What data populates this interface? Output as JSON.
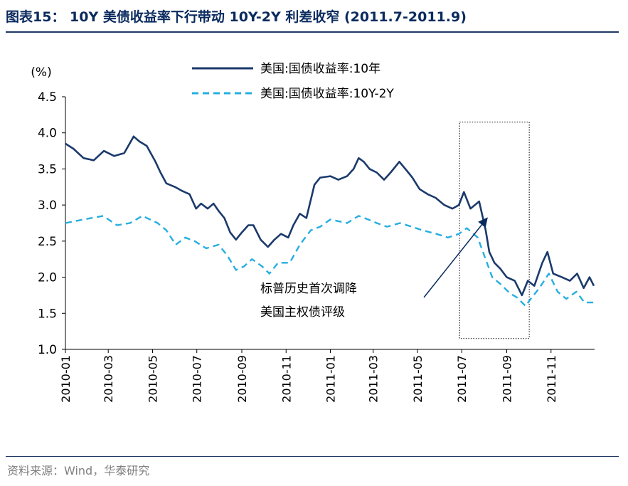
{
  "header": {
    "title": "图表15： 10Y 美债收益率下行带动 10Y-2Y 利差收窄 (2011.7-2011.9)"
  },
  "source": {
    "text": "资料来源：Wind，华泰研究"
  },
  "colors": {
    "series_10y": "#1b3a6b",
    "series_spread": "#27aee0",
    "axis": "#000000",
    "title": "#0a2a5e"
  },
  "chart_data": {
    "type": "line",
    "ylabel": "(%)",
    "ylim": [
      1.0,
      4.5
    ],
    "yticks": [
      "1.0",
      "1.5",
      "2.0",
      "2.5",
      "3.0",
      "3.5",
      "4.0",
      "4.5"
    ],
    "xlim": [
      "2010-01-01",
      "2011-12-31"
    ],
    "xtick_dates": [
      "2010-01-01",
      "2010-03-01",
      "2010-05-01",
      "2010-07-01",
      "2010-09-01",
      "2010-11-01",
      "2011-01-01",
      "2011-03-01",
      "2011-05-01",
      "2011-07-01",
      "2011-09-01",
      "2011-11-01"
    ],
    "xtick_labels": [
      "2010-01",
      "2010-03",
      "2010-05",
      "2010-07",
      "2010-09",
      "2010-11",
      "2011-01",
      "2011-03",
      "2011-05",
      "2011-07",
      "2011-09",
      "2011-11"
    ],
    "grid": false,
    "legend_position": "top",
    "series": [
      {
        "name": "美国:国债收益率:10年",
        "style": "solid",
        "points": [
          [
            "2010-01-01",
            3.85
          ],
          [
            "2010-01-12",
            3.78
          ],
          [
            "2010-01-26",
            3.65
          ],
          [
            "2010-02-09",
            3.62
          ],
          [
            "2010-02-23",
            3.75
          ],
          [
            "2010-03-09",
            3.68
          ],
          [
            "2010-03-23",
            3.72
          ],
          [
            "2010-04-05",
            3.95
          ],
          [
            "2010-04-13",
            3.88
          ],
          [
            "2010-04-23",
            3.82
          ],
          [
            "2010-05-05",
            3.6
          ],
          [
            "2010-05-12",
            3.45
          ],
          [
            "2010-05-20",
            3.3
          ],
          [
            "2010-06-01",
            3.25
          ],
          [
            "2010-06-10",
            3.2
          ],
          [
            "2010-06-21",
            3.15
          ],
          [
            "2010-06-30",
            2.95
          ],
          [
            "2010-07-07",
            3.02
          ],
          [
            "2010-07-16",
            2.95
          ],
          [
            "2010-07-24",
            3.02
          ],
          [
            "2010-07-31",
            2.92
          ],
          [
            "2010-08-08",
            2.82
          ],
          [
            "2010-08-16",
            2.62
          ],
          [
            "2010-08-24",
            2.52
          ],
          [
            "2010-09-01",
            2.62
          ],
          [
            "2010-09-10",
            2.72
          ],
          [
            "2010-09-17",
            2.72
          ],
          [
            "2010-09-27",
            2.52
          ],
          [
            "2010-10-07",
            2.42
          ],
          [
            "2010-10-16",
            2.52
          ],
          [
            "2010-10-25",
            2.6
          ],
          [
            "2010-11-04",
            2.55
          ],
          [
            "2010-11-11",
            2.72
          ],
          [
            "2010-11-20",
            2.88
          ],
          [
            "2010-11-29",
            2.82
          ],
          [
            "2010-12-10",
            3.28
          ],
          [
            "2010-12-18",
            3.38
          ],
          [
            "2011-01-01",
            3.4
          ],
          [
            "2011-01-12",
            3.35
          ],
          [
            "2011-01-24",
            3.4
          ],
          [
            "2011-02-02",
            3.5
          ],
          [
            "2011-02-09",
            3.65
          ],
          [
            "2011-02-16",
            3.6
          ],
          [
            "2011-02-24",
            3.5
          ],
          [
            "2011-03-06",
            3.45
          ],
          [
            "2011-03-16",
            3.35
          ],
          [
            "2011-03-25",
            3.45
          ],
          [
            "2011-04-06",
            3.6
          ],
          [
            "2011-04-16",
            3.48
          ],
          [
            "2011-04-24",
            3.38
          ],
          [
            "2011-05-04",
            3.22
          ],
          [
            "2011-05-15",
            3.15
          ],
          [
            "2011-05-26",
            3.1
          ],
          [
            "2011-06-07",
            3.0
          ],
          [
            "2011-06-18",
            2.95
          ],
          [
            "2011-06-27",
            3.0
          ],
          [
            "2011-07-04",
            3.18
          ],
          [
            "2011-07-13",
            2.95
          ],
          [
            "2011-07-25",
            3.05
          ],
          [
            "2011-08-03",
            2.65
          ],
          [
            "2011-08-08",
            2.35
          ],
          [
            "2011-08-15",
            2.2
          ],
          [
            "2011-08-23",
            2.12
          ],
          [
            "2011-09-01",
            2.0
          ],
          [
            "2011-09-12",
            1.95
          ],
          [
            "2011-09-22",
            1.75
          ],
          [
            "2011-09-30",
            1.95
          ],
          [
            "2011-10-09",
            1.88
          ],
          [
            "2011-10-20",
            2.2
          ],
          [
            "2011-10-27",
            2.35
          ],
          [
            "2011-11-04",
            2.05
          ],
          [
            "2011-11-16",
            2.0
          ],
          [
            "2011-11-27",
            1.95
          ],
          [
            "2011-12-07",
            2.05
          ],
          [
            "2011-12-16",
            1.85
          ],
          [
            "2011-12-24",
            2.0
          ],
          [
            "2011-12-30",
            1.88
          ]
        ]
      },
      {
        "name": "美国:国债收益率:10Y-2Y",
        "style": "dashed",
        "points": [
          [
            "2010-01-01",
            2.75
          ],
          [
            "2010-01-26",
            2.8
          ],
          [
            "2010-02-22",
            2.85
          ],
          [
            "2010-03-13",
            2.72
          ],
          [
            "2010-03-31",
            2.75
          ],
          [
            "2010-04-17",
            2.85
          ],
          [
            "2010-05-08",
            2.75
          ],
          [
            "2010-05-20",
            2.65
          ],
          [
            "2010-06-02",
            2.45
          ],
          [
            "2010-06-15",
            2.55
          ],
          [
            "2010-06-28",
            2.5
          ],
          [
            "2010-07-14",
            2.4
          ],
          [
            "2010-07-31",
            2.45
          ],
          [
            "2010-08-12",
            2.3
          ],
          [
            "2010-08-24",
            2.1
          ],
          [
            "2010-09-04",
            2.15
          ],
          [
            "2010-09-15",
            2.25
          ],
          [
            "2010-09-29",
            2.15
          ],
          [
            "2010-10-09",
            2.05
          ],
          [
            "2010-10-21",
            2.2
          ],
          [
            "2010-11-06",
            2.2
          ],
          [
            "2010-11-20",
            2.45
          ],
          [
            "2010-12-05",
            2.65
          ],
          [
            "2010-12-18",
            2.7
          ],
          [
            "2011-01-01",
            2.8
          ],
          [
            "2011-01-24",
            2.75
          ],
          [
            "2011-02-09",
            2.85
          ],
          [
            "2011-02-22",
            2.8
          ],
          [
            "2011-03-06",
            2.75
          ],
          [
            "2011-03-20",
            2.7
          ],
          [
            "2011-04-07",
            2.75
          ],
          [
            "2011-04-23",
            2.7
          ],
          [
            "2011-05-08",
            2.65
          ],
          [
            "2011-05-27",
            2.6
          ],
          [
            "2011-06-12",
            2.55
          ],
          [
            "2011-06-27",
            2.6
          ],
          [
            "2011-07-08",
            2.68
          ],
          [
            "2011-07-23",
            2.55
          ],
          [
            "2011-08-01",
            2.3
          ],
          [
            "2011-08-12",
            2.0
          ],
          [
            "2011-08-24",
            1.9
          ],
          [
            "2011-09-05",
            1.78
          ],
          [
            "2011-09-15",
            1.72
          ],
          [
            "2011-09-27",
            1.6
          ],
          [
            "2011-10-04",
            1.7
          ],
          [
            "2011-10-16",
            1.85
          ],
          [
            "2011-10-29",
            2.05
          ],
          [
            "2011-11-10",
            1.8
          ],
          [
            "2011-11-22",
            1.7
          ],
          [
            "2011-12-06",
            1.8
          ],
          [
            "2011-12-17",
            1.65
          ],
          [
            "2011-12-30",
            1.65
          ]
        ]
      }
    ],
    "annotations": [
      {
        "text_lines": [
          "标普历史首次调降",
          "美国主权债评级"
        ],
        "arrow_to": [
          "2011-08-05",
          2.82
        ]
      }
    ],
    "highlight_window": [
      "2011-06-28",
      "2011-10-02"
    ],
    "highlight_ylim": [
      1.15,
      4.15
    ]
  }
}
